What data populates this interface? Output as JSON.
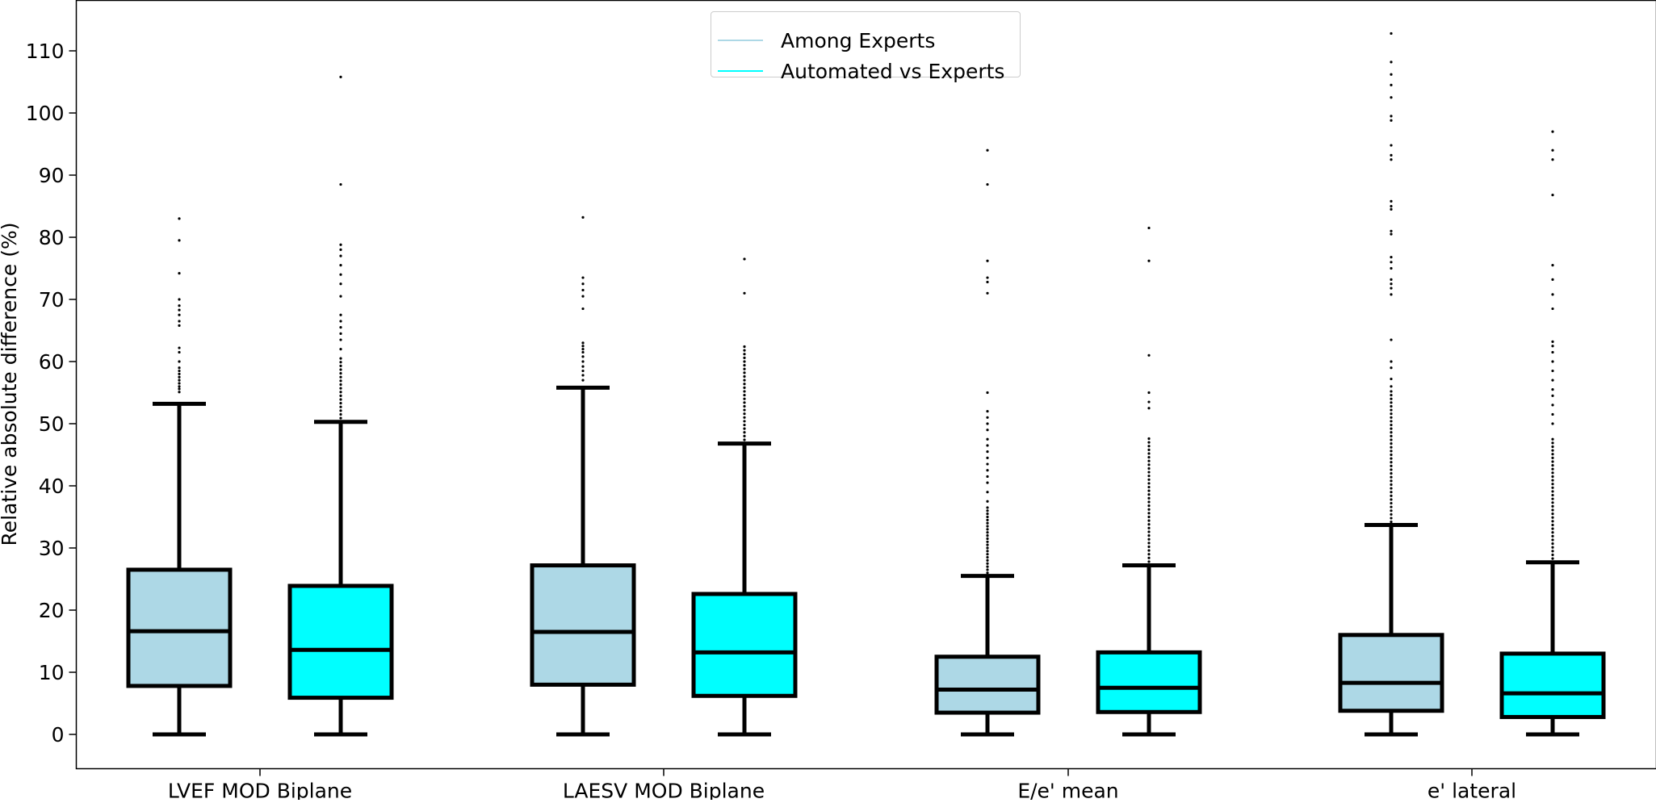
{
  "chart_data": {
    "type": "boxplot",
    "title": "",
    "xlabel": "",
    "ylabel": "Relative absolute difference (%)",
    "ylim": [
      -5.5,
      117.5
    ],
    "yticks": [
      0,
      10,
      20,
      30,
      40,
      50,
      60,
      70,
      80,
      90,
      100,
      110
    ],
    "grid": false,
    "legend_position": "top-center",
    "categories": [
      "LVEF MOD Biplane",
      "LAESV MOD Biplane",
      "E/e' mean",
      "e' lateral"
    ],
    "series": [
      {
        "name": "Among Experts",
        "color": "#add8e6",
        "boxes": [
          {
            "whislo": 0,
            "q1": 7.8,
            "med": 16.6,
            "q3": 26.5,
            "whishi": 53.2,
            "fliers": [
              55.1,
              55.6,
              56.0,
              56.5,
              57.0,
              57.5,
              58.0,
              58.5,
              59.0,
              60.0,
              61.5,
              62.2,
              65.8,
              66.5,
              67.5,
              68.3,
              69.0,
              70.0,
              74.2,
              79.5,
              83.0
            ]
          },
          {
            "whislo": 0,
            "q1": 8.0,
            "med": 16.5,
            "q3": 27.2,
            "whishi": 55.8,
            "fliers": [
              57.0,
              57.8,
              58.5,
              59.2,
              60.0,
              60.8,
              61.5,
              62.0,
              62.5,
              63.0,
              68.5,
              70.5,
              71.5,
              72.5,
              73.5,
              83.2
            ]
          },
          {
            "whislo": 0,
            "q1": 3.5,
            "med": 7.2,
            "q3": 12.5,
            "whishi": 25.5,
            "fliers": [
              26.0,
              26.5,
              27.0,
              27.5,
              28.0,
              28.5,
              29.0,
              29.5,
              30.0,
              30.5,
              31.0,
              31.5,
              32.0,
              32.5,
              33.0,
              33.5,
              34.0,
              34.5,
              35.0,
              35.5,
              36.0,
              36.5,
              37.5,
              39.0,
              40.5,
              41.5,
              42.5,
              43.5,
              44.5,
              45.5,
              46.5,
              47.5,
              49.0,
              50.0,
              51.0,
              52.0,
              55.0,
              71.0,
              72.8,
              73.5,
              76.2,
              88.5,
              94.0
            ]
          },
          {
            "whislo": 0,
            "q1": 3.8,
            "med": 8.3,
            "q3": 16.0,
            "whishi": 33.7,
            "fliers": [
              34.2,
              34.8,
              35.4,
              36.0,
              36.6,
              37.2,
              37.8,
              38.4,
              39.0,
              39.6,
              40.2,
              40.8,
              41.4,
              42.0,
              42.6,
              43.2,
              43.8,
              44.4,
              45.0,
              45.6,
              46.2,
              46.8,
              47.4,
              48.0,
              48.6,
              49.2,
              49.8,
              50.4,
              51.0,
              51.6,
              52.2,
              52.8,
              53.4,
              54.0,
              54.6,
              55.2,
              56.0,
              57.2,
              59.0,
              60.0,
              63.5,
              70.8,
              71.8,
              72.5,
              73.2,
              75.0,
              76.0,
              76.8,
              80.5,
              81.0,
              84.5,
              85.0,
              85.8,
              92.5,
              93.2,
              94.8,
              98.8,
              99.5,
              102.5,
              104.5,
              106.2,
              108.2,
              112.8
            ]
          }
        ]
      },
      {
        "name": "Automated vs Experts",
        "color": "#00ffff",
        "boxes": [
          {
            "whislo": 0,
            "q1": 5.9,
            "med": 13.6,
            "q3": 23.9,
            "whishi": 50.3,
            "fliers": [
              50.9,
              51.5,
              52.1,
              52.7,
              53.3,
              53.9,
              54.5,
              55.1,
              55.7,
              56.3,
              56.9,
              57.5,
              58.1,
              58.7,
              59.3,
              59.9,
              60.5,
              62.0,
              63.5,
              64.5,
              65.5,
              66.5,
              67.5,
              70.5,
              72.5,
              74.0,
              75.5,
              77.0,
              78.0,
              78.8,
              88.5,
              105.8
            ]
          },
          {
            "whislo": 0,
            "q1": 6.2,
            "med": 13.2,
            "q3": 22.6,
            "whishi": 46.8,
            "fliers": [
              47.4,
              48.0,
              48.6,
              49.2,
              49.8,
              50.4,
              51.0,
              51.6,
              52.2,
              52.8,
              53.4,
              54.0,
              54.6,
              55.2,
              55.8,
              56.4,
              57.0,
              57.6,
              58.2,
              58.8,
              59.4,
              60.0,
              60.6,
              61.2,
              61.8,
              62.4,
              71.0,
              76.5
            ]
          },
          {
            "whislo": 0,
            "q1": 3.6,
            "med": 7.5,
            "q3": 13.2,
            "whishi": 27.2,
            "fliers": [
              27.8,
              28.4,
              29.0,
              29.6,
              30.2,
              30.8,
              31.4,
              32.0,
              32.6,
              33.2,
              33.8,
              34.4,
              35.0,
              35.6,
              36.2,
              36.8,
              37.4,
              38.0,
              38.6,
              39.2,
              39.8,
              40.4,
              41.0,
              41.6,
              42.2,
              42.8,
              43.4,
              44.0,
              44.6,
              45.2,
              45.8,
              46.4,
              47.0,
              47.6,
              52.5,
              53.5,
              55.0,
              61.0,
              76.2,
              81.5
            ]
          },
          {
            "whislo": 0,
            "q1": 2.8,
            "med": 6.6,
            "q3": 13.0,
            "whishi": 27.7,
            "fliers": [
              28.3,
              28.9,
              29.5,
              30.1,
              30.7,
              31.3,
              31.9,
              32.5,
              33.1,
              33.7,
              34.3,
              34.9,
              35.5,
              36.1,
              36.7,
              37.3,
              37.9,
              38.5,
              39.1,
              39.7,
              40.3,
              40.9,
              41.5,
              42.1,
              42.7,
              43.3,
              43.9,
              44.5,
              45.1,
              45.7,
              46.3,
              46.9,
              47.5,
              50.0,
              51.5,
              53.0,
              54.5,
              55.5,
              57.0,
              58.5,
              60.0,
              61.5,
              62.5,
              63.2,
              68.5,
              70.8,
              73.2,
              75.5,
              86.8,
              92.5,
              94.0,
              97.0
            ]
          }
        ]
      }
    ]
  },
  "legend": {
    "items": [
      {
        "label": "Among Experts",
        "color": "#add8e6"
      },
      {
        "label": "Automated vs Experts",
        "color": "#00ffff"
      }
    ]
  }
}
